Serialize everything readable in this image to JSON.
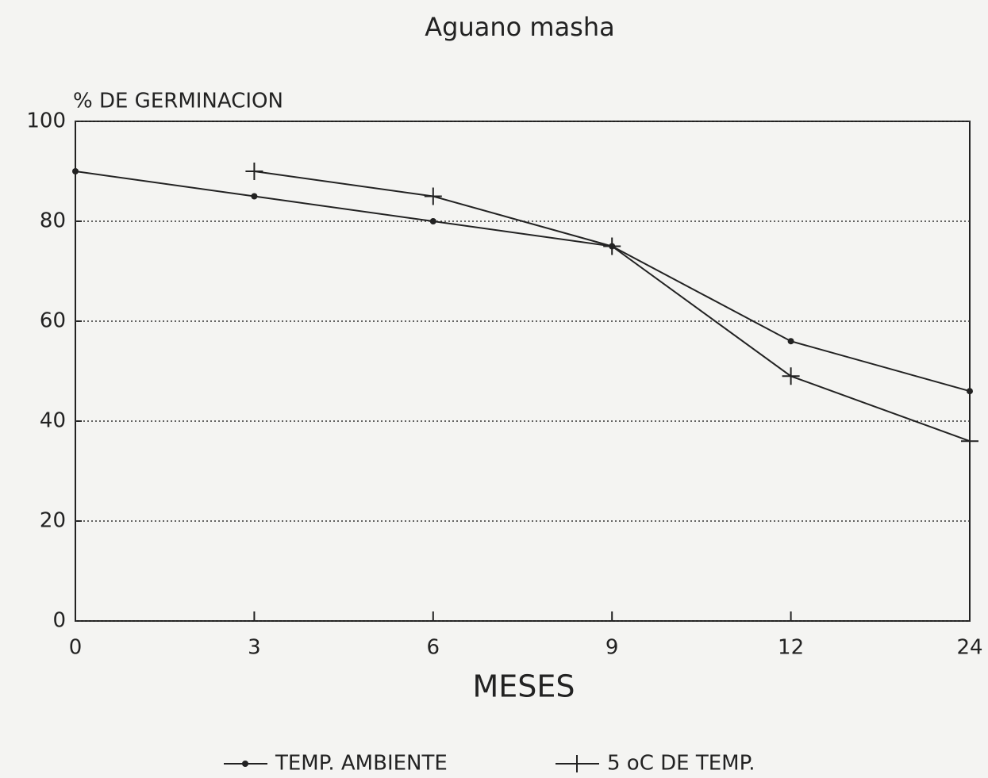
{
  "chart_data": {
    "type": "line",
    "title": "Aguano masha",
    "y_label": "% DE GERMINACION",
    "x_label": "MESES",
    "categories": [
      "0",
      "3",
      "6",
      "9",
      "12",
      "24"
    ],
    "series": [
      {
        "name": "TEMP. AMBIENTE",
        "color": "#222222",
        "marker": "dot",
        "values": [
          90,
          85,
          80,
          75,
          56,
          46
        ]
      },
      {
        "name": "5 oC DE TEMP.",
        "color": "#222222",
        "marker": "plus",
        "values": [
          null,
          90,
          85,
          75,
          49,
          36
        ]
      }
    ],
    "ylim": [
      0,
      100
    ],
    "yticks": [
      0,
      20,
      40,
      60,
      80,
      100
    ],
    "grid": true,
    "legend": "bottom"
  }
}
